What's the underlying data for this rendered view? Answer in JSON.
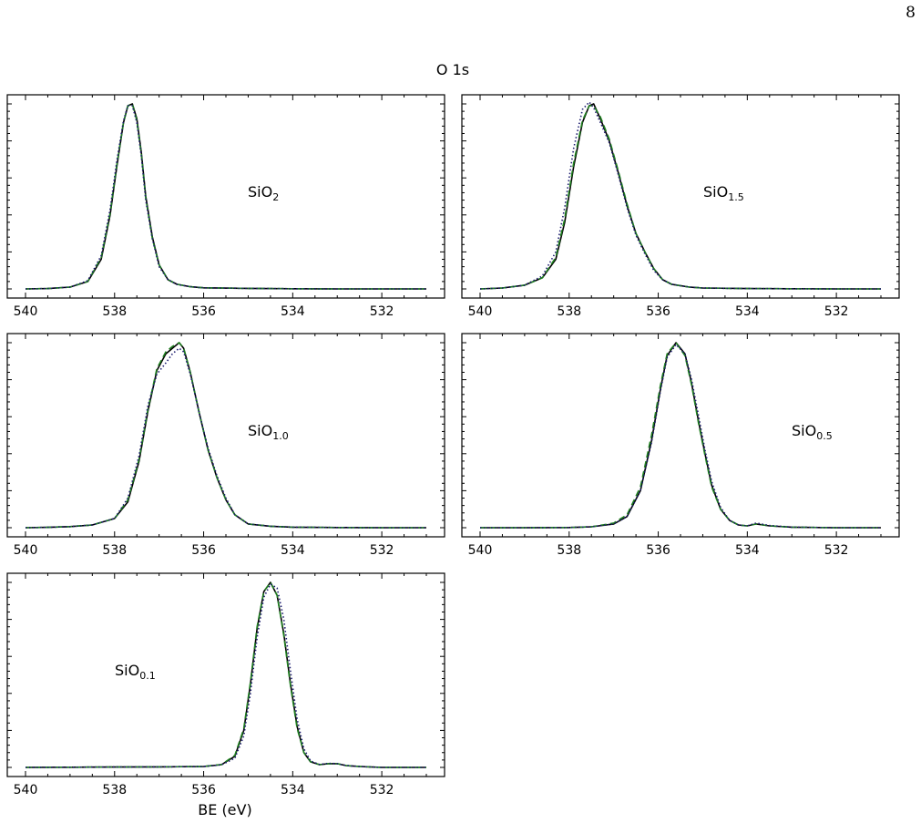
{
  "page": {
    "number": "8"
  },
  "figure": {
    "title": "O 1s",
    "xlabel": "BE (eV)"
  },
  "colors": {
    "line_solid": "#000000",
    "line_dashed": "#1f7f1f",
    "line_dotted": "#1a1a6e",
    "axis": "#000000"
  },
  "chart_data": [
    {
      "type": "line",
      "label_main": "SiO",
      "label_sub": "2",
      "xlim": [
        540,
        531
      ],
      "xticks": [
        540,
        538,
        536,
        534,
        532
      ],
      "x": [
        540,
        539.5,
        539,
        538.6,
        538.3,
        538.1,
        537.95,
        537.8,
        537.7,
        537.6,
        537.5,
        537.4,
        537.3,
        537.15,
        537.0,
        536.8,
        536.6,
        536.3,
        536,
        535,
        534,
        533,
        532,
        531
      ],
      "series": [
        {
          "style": "solid",
          "values": [
            0,
            0.002,
            0.01,
            0.04,
            0.16,
            0.4,
            0.66,
            0.9,
            0.99,
            1.0,
            0.92,
            0.74,
            0.5,
            0.28,
            0.13,
            0.05,
            0.025,
            0.012,
            0.006,
            0.003,
            0.001,
            0,
            0,
            0
          ]
        },
        {
          "style": "dashed",
          "values": [
            0,
            0.002,
            0.01,
            0.04,
            0.17,
            0.41,
            0.67,
            0.9,
            0.99,
            1.0,
            0.91,
            0.73,
            0.49,
            0.27,
            0.13,
            0.05,
            0.025,
            0.012,
            0.006,
            0.003,
            0.001,
            0,
            0,
            0
          ]
        },
        {
          "style": "dotted",
          "values": [
            0,
            0.002,
            0.01,
            0.045,
            0.18,
            0.43,
            0.69,
            0.91,
            0.99,
            0.99,
            0.9,
            0.72,
            0.48,
            0.27,
            0.12,
            0.05,
            0.024,
            0.012,
            0.006,
            0.003,
            0.001,
            0,
            0,
            0
          ]
        }
      ]
    },
    {
      "type": "line",
      "label_main": "SiO",
      "label_sub": "1.5",
      "xlim": [
        540,
        531
      ],
      "xticks": [
        540,
        538,
        536,
        534,
        532
      ],
      "x": [
        540,
        539.5,
        539,
        538.6,
        538.3,
        538.1,
        537.9,
        537.7,
        537.55,
        537.45,
        537.3,
        537.1,
        536.9,
        536.7,
        536.5,
        536.3,
        536.1,
        535.9,
        535.7,
        535.3,
        535,
        534,
        533,
        532,
        531
      ],
      "series": [
        {
          "style": "solid",
          "values": [
            0,
            0.005,
            0.02,
            0.06,
            0.16,
            0.36,
            0.66,
            0.9,
            0.99,
            1.0,
            0.92,
            0.8,
            0.63,
            0.45,
            0.3,
            0.2,
            0.11,
            0.05,
            0.025,
            0.01,
            0.005,
            0.002,
            0.001,
            0,
            0
          ]
        },
        {
          "style": "dashed",
          "values": [
            0,
            0.005,
            0.02,
            0.06,
            0.17,
            0.38,
            0.68,
            0.91,
            0.99,
            0.99,
            0.93,
            0.81,
            0.64,
            0.46,
            0.3,
            0.2,
            0.11,
            0.05,
            0.025,
            0.01,
            0.005,
            0.002,
            0.001,
            0,
            0
          ]
        },
        {
          "style": "dotted",
          "values": [
            0,
            0.005,
            0.02,
            0.07,
            0.2,
            0.44,
            0.76,
            0.97,
            1.01,
            0.98,
            0.9,
            0.79,
            0.62,
            0.44,
            0.29,
            0.19,
            0.1,
            0.05,
            0.025,
            0.01,
            0.005,
            0.002,
            0.001,
            0,
            0
          ]
        }
      ]
    },
    {
      "type": "line",
      "label_main": "SiO",
      "label_sub": "1.0",
      "xlim": [
        540,
        531
      ],
      "xticks": [
        540,
        538,
        536,
        534,
        532
      ],
      "x": [
        540,
        539.5,
        539,
        538.5,
        538.0,
        537.7,
        537.45,
        537.25,
        537.05,
        536.85,
        536.7,
        536.55,
        536.45,
        536.3,
        536.1,
        535.9,
        535.7,
        535.5,
        535.3,
        535,
        534.5,
        534,
        533,
        532,
        531
      ],
      "series": [
        {
          "style": "solid",
          "values": [
            0,
            0.002,
            0.006,
            0.015,
            0.05,
            0.14,
            0.36,
            0.63,
            0.85,
            0.94,
            0.97,
            1.0,
            0.97,
            0.84,
            0.62,
            0.42,
            0.27,
            0.15,
            0.07,
            0.02,
            0.008,
            0.003,
            0.001,
            0,
            0
          ]
        },
        {
          "style": "dashed",
          "values": [
            0,
            0.002,
            0.006,
            0.015,
            0.05,
            0.15,
            0.37,
            0.64,
            0.86,
            0.95,
            0.98,
            1.0,
            0.97,
            0.84,
            0.62,
            0.42,
            0.27,
            0.15,
            0.07,
            0.02,
            0.008,
            0.003,
            0.001,
            0,
            0
          ]
        },
        {
          "style": "dotted",
          "values": [
            0,
            0.002,
            0.006,
            0.015,
            0.05,
            0.16,
            0.39,
            0.66,
            0.83,
            0.89,
            0.94,
            0.97,
            0.95,
            0.83,
            0.62,
            0.43,
            0.28,
            0.16,
            0.07,
            0.02,
            0.008,
            0.003,
            0.001,
            0,
            0
          ]
        }
      ]
    },
    {
      "type": "line",
      "label_main": "SiO",
      "label_sub": "0.5",
      "xlim": [
        540,
        531
      ],
      "xticks": [
        540,
        538,
        536,
        534,
        532
      ],
      "x": [
        540,
        539,
        538,
        537.5,
        537,
        536.7,
        536.4,
        536.15,
        535.95,
        535.8,
        535.6,
        535.4,
        535.25,
        535.1,
        534.95,
        534.8,
        534.6,
        534.4,
        534.2,
        534,
        533.8,
        533.5,
        533,
        532,
        531
      ],
      "series": [
        {
          "style": "solid",
          "values": [
            0,
            0,
            0.001,
            0.005,
            0.02,
            0.06,
            0.2,
            0.47,
            0.75,
            0.93,
            1.0,
            0.94,
            0.78,
            0.58,
            0.4,
            0.23,
            0.1,
            0.04,
            0.015,
            0.01,
            0.02,
            0.01,
            0.003,
            0,
            0
          ]
        },
        {
          "style": "dashed",
          "values": [
            0,
            0,
            0.001,
            0.005,
            0.025,
            0.07,
            0.22,
            0.5,
            0.77,
            0.94,
            1.0,
            0.93,
            0.77,
            0.57,
            0.39,
            0.22,
            0.1,
            0.04,
            0.015,
            0.01,
            0.02,
            0.01,
            0.003,
            0,
            0
          ]
        },
        {
          "style": "dotted",
          "values": [
            0,
            0,
            0.001,
            0.005,
            0.02,
            0.06,
            0.2,
            0.46,
            0.74,
            0.92,
            0.99,
            0.94,
            0.8,
            0.61,
            0.42,
            0.25,
            0.11,
            0.04,
            0.015,
            0.01,
            0.025,
            0.012,
            0.003,
            0,
            0
          ]
        }
      ]
    },
    {
      "type": "line",
      "label_main": "SiO",
      "label_sub": "0.1",
      "xlim": [
        540,
        531
      ],
      "xticks": [
        540,
        538,
        536,
        534,
        532
      ],
      "x": [
        540,
        539,
        538,
        537,
        536,
        535.6,
        535.3,
        535.1,
        534.95,
        534.8,
        534.65,
        534.5,
        534.35,
        534.2,
        534.05,
        533.9,
        533.75,
        533.6,
        533.4,
        533.2,
        533,
        532.8,
        532.5,
        532,
        531
      ],
      "series": [
        {
          "style": "solid",
          "values": [
            0,
            0.001,
            0.002,
            0.003,
            0.005,
            0.015,
            0.06,
            0.2,
            0.45,
            0.75,
            0.95,
            1.0,
            0.93,
            0.72,
            0.45,
            0.22,
            0.08,
            0.03,
            0.015,
            0.02,
            0.02,
            0.01,
            0.005,
            0,
            0
          ]
        },
        {
          "style": "dashed",
          "values": [
            0,
            0.001,
            0.002,
            0.003,
            0.005,
            0.016,
            0.065,
            0.21,
            0.46,
            0.76,
            0.95,
            1.0,
            0.93,
            0.71,
            0.44,
            0.21,
            0.08,
            0.03,
            0.015,
            0.02,
            0.02,
            0.01,
            0.005,
            0,
            0
          ]
        },
        {
          "style": "dotted",
          "values": [
            0,
            0.001,
            0.002,
            0.003,
            0.005,
            0.014,
            0.05,
            0.17,
            0.4,
            0.7,
            0.92,
            0.99,
            0.97,
            0.8,
            0.52,
            0.26,
            0.1,
            0.035,
            0.016,
            0.022,
            0.02,
            0.01,
            0.005,
            0,
            0
          ]
        }
      ]
    }
  ]
}
